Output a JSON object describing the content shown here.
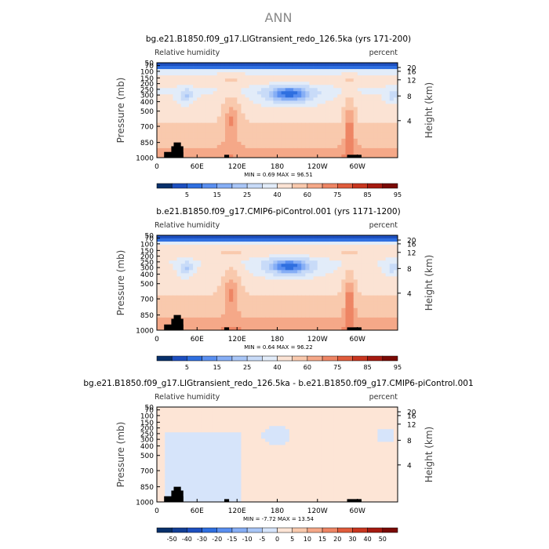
{
  "figure": {
    "title": "ANN"
  },
  "chart_data": [
    {
      "type": "heatmap",
      "title": "bg.e21.B1850.f09_g17.LIGtransient_redo_126.5ka (yrs 171-200)",
      "left_label": "Relative humidity",
      "right_label": "percent",
      "ylabel": "Pressure (mb)",
      "ylabel_right": "Height (km)",
      "xticks": [
        "0",
        "60E",
        "120E",
        "180",
        "120W",
        "60W"
      ],
      "yticks": [
        "50",
        "70",
        "100",
        "150",
        "200",
        "250",
        "300",
        "400",
        "500",
        "700",
        "850",
        "1000"
      ],
      "yticks_right": [
        "20",
        "16",
        "12",
        "8",
        "4"
      ],
      "minmax_text": "MIN =    0.69   MAX =   96.51",
      "min": 0.69,
      "max": 96.51,
      "colorbar_labels": [
        "5",
        "15",
        "25",
        "40",
        "60",
        "75",
        "85",
        "95"
      ],
      "colorbar_colors": [
        "#08306b",
        "#1d4fbf",
        "#2f6fe0",
        "#5a8ff0",
        "#86aef5",
        "#a9c6f7",
        "#c8dbf8",
        "#e2ecf9",
        "#fbe3d4",
        "#f9c9ad",
        "#f5a888",
        "#ee8564",
        "#e05c3c",
        "#c8361f",
        "#a61a10",
        "#7a0a05"
      ]
    },
    {
      "type": "heatmap",
      "title": "b.e21.B1850.f09_g17.CMIP6-piControl.001 (yrs 1171-1200)",
      "left_label": "Relative humidity",
      "right_label": "percent",
      "ylabel": "Pressure (mb)",
      "ylabel_right": "Height (km)",
      "xticks": [
        "0",
        "60E",
        "120E",
        "180",
        "120W",
        "60W"
      ],
      "yticks": [
        "50",
        "70",
        "100",
        "150",
        "200",
        "250",
        "300",
        "400",
        "500",
        "700",
        "850",
        "1000"
      ],
      "yticks_right": [
        "20",
        "16",
        "12",
        "8",
        "4"
      ],
      "minmax_text": "MIN =    0.64   MAX =   96.22",
      "min": 0.64,
      "max": 96.22,
      "colorbar_labels": [
        "5",
        "15",
        "25",
        "40",
        "60",
        "75",
        "85",
        "95"
      ],
      "colorbar_colors": [
        "#08306b",
        "#1d4fbf",
        "#2f6fe0",
        "#5a8ff0",
        "#86aef5",
        "#a9c6f7",
        "#c8dbf8",
        "#e2ecf9",
        "#fbe3d4",
        "#f9c9ad",
        "#f5a888",
        "#ee8564",
        "#e05c3c",
        "#c8361f",
        "#a61a10",
        "#7a0a05"
      ]
    },
    {
      "type": "heatmap",
      "title": "bg.e21.B1850.f09_g17.LIGtransient_redo_126.5ka - b.e21.B1850.f09_g17.CMIP6-piControl.001",
      "left_label": "Relative humidity",
      "right_label": "percent",
      "ylabel": "Pressure (mb)",
      "ylabel_right": "Height (km)",
      "xticks": [
        "0",
        "60E",
        "120E",
        "180",
        "120W",
        "60W"
      ],
      "yticks": [
        "50",
        "70",
        "100",
        "150",
        "200",
        "250",
        "300",
        "400",
        "500",
        "700",
        "850",
        "1000"
      ],
      "yticks_right": [
        "20",
        "16",
        "12",
        "8",
        "4"
      ],
      "minmax_text": "MIN =   -7.72   MAX =   13.54",
      "min": -7.72,
      "max": 13.54,
      "colorbar_labels": [
        "-50",
        "-40",
        "-30",
        "-20",
        "-15",
        "-10",
        "-5",
        "0",
        "5",
        "10",
        "15",
        "20",
        "30",
        "40",
        "50"
      ],
      "colorbar_colors": [
        "#08306b",
        "#123f96",
        "#1d4fbf",
        "#2f6fe0",
        "#5a8ff0",
        "#86aef5",
        "#a9c6f7",
        "#d6e4fa",
        "#fde5d6",
        "#f9c9ad",
        "#f5a888",
        "#ee8564",
        "#e05c3c",
        "#c8361f",
        "#a61a10",
        "#7a0a05"
      ]
    }
  ]
}
